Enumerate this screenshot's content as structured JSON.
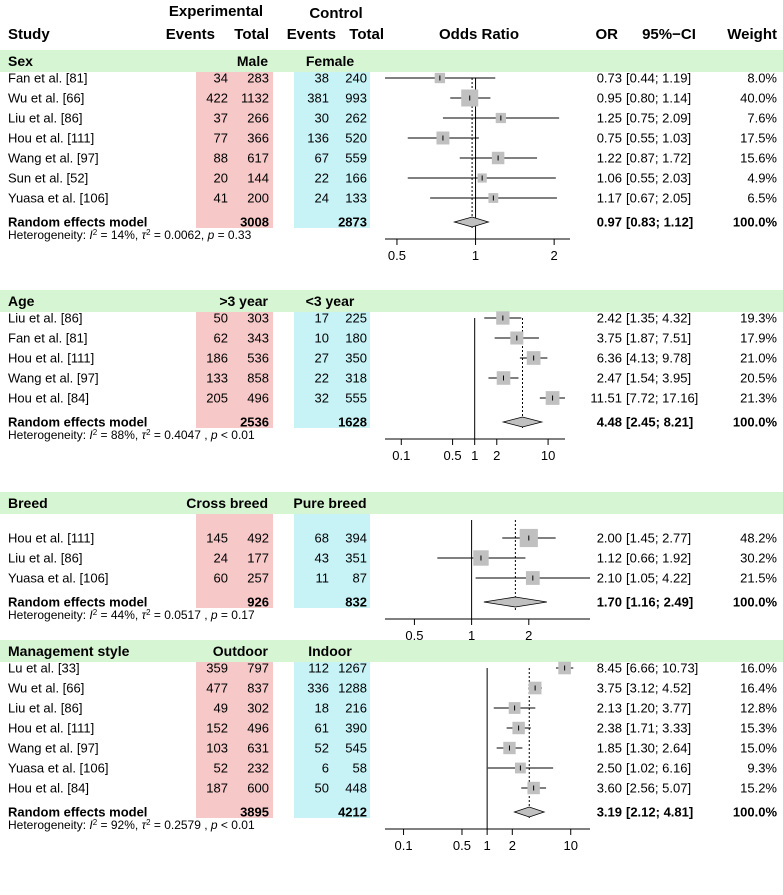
{
  "chart_data": {
    "type": "forest",
    "columns": {
      "study": "Study",
      "experimental": "Experimental",
      "control": "Control",
      "events": "Events",
      "total": "Total",
      "odds_ratio": "Odds Ratio",
      "or": "OR",
      "ci": "95%−CI",
      "weight": "Weight"
    },
    "random_label": "Random effects model",
    "reference_line_or": 1,
    "colors": {
      "group_band": "#d6f5d2",
      "experimental_band": "#f6c8c8",
      "control_band": "#c7f3f7",
      "box": "#c0c0c0",
      "diamond": "#c0c0c0",
      "lines": "#000000",
      "dotted": "#000000"
    },
    "subgroups": [
      {
        "name": "Sex",
        "exp_label": "Male",
        "ctrl_label": "Female",
        "scale": "log",
        "xlim": [
          0.45,
          2.3
        ],
        "ticks": [
          0.5,
          1,
          2
        ],
        "tick_labels": [
          "0.5",
          "1",
          "2"
        ],
        "studies": [
          {
            "study": "Fan et al. [81]",
            "exp_events": 34,
            "exp_total": 283,
            "ctrl_events": 38,
            "ctrl_total": 240,
            "or": 0.73,
            "lo": 0.44,
            "hi": 1.19,
            "or_text": "0.73",
            "ci_text": "[0.44; 1.19]",
            "weight": "8.0%",
            "w": 8.0
          },
          {
            "study": "Wu et al. [66]",
            "exp_events": 422,
            "exp_total": 1132,
            "ctrl_events": 381,
            "ctrl_total": 993,
            "or": 0.95,
            "lo": 0.8,
            "hi": 1.14,
            "or_text": "0.95",
            "ci_text": "[0.80; 1.14]",
            "weight": "40.0%",
            "w": 40.0
          },
          {
            "study": "Liu et al. [86]",
            "exp_events": 37,
            "exp_total": 266,
            "ctrl_events": 30,
            "ctrl_total": 262,
            "or": 1.25,
            "lo": 0.75,
            "hi": 2.09,
            "or_text": "1.25",
            "ci_text": "[0.75; 2.09]",
            "weight": "7.6%",
            "w": 7.6
          },
          {
            "study": "Hou et al. [111]",
            "exp_events": 77,
            "exp_total": 366,
            "ctrl_events": 136,
            "ctrl_total": 520,
            "or": 0.75,
            "lo": 0.55,
            "hi": 1.03,
            "or_text": "0.75",
            "ci_text": "[0.55; 1.03]",
            "weight": "17.5%",
            "w": 17.5
          },
          {
            "study": "Wang et al. [97]",
            "exp_events": 88,
            "exp_total": 617,
            "ctrl_events": 67,
            "ctrl_total": 559,
            "or": 1.22,
            "lo": 0.87,
            "hi": 1.72,
            "or_text": "1.22",
            "ci_text": "[0.87; 1.72]",
            "weight": "15.6%",
            "w": 15.6
          },
          {
            "study": "Sun et al. [52]",
            "exp_events": 20,
            "exp_total": 144,
            "ctrl_events": 22,
            "ctrl_total": 166,
            "or": 1.06,
            "lo": 0.55,
            "hi": 2.03,
            "or_text": "1.06",
            "ci_text": "[0.55; 2.03]",
            "weight": "4.9%",
            "w": 4.9
          },
          {
            "study": "Yuasa et al. [106]",
            "exp_events": 41,
            "exp_total": 200,
            "ctrl_events": 24,
            "ctrl_total": 133,
            "or": 1.17,
            "lo": 0.67,
            "hi": 2.05,
            "or_text": "1.17",
            "ci_text": "[0.67; 2.05]",
            "weight": "6.5%",
            "w": 6.5
          }
        ],
        "pooled": {
          "exp_total": 3008,
          "ctrl_total": 2873,
          "or": 0.97,
          "lo": 0.83,
          "hi": 1.12,
          "or_text": "0.97",
          "ci_text": "[0.83; 1.12]",
          "weight": "100.0%"
        },
        "heterogeneity": {
          "prefix": "Heterogeneity: ",
          "i2": "I",
          "i2_sup": "2",
          "i2_val": " = 14%, ",
          "tau": "τ",
          "tau_sup": "2",
          "tau_val": " = 0.0062, ",
          "p": "p",
          "p_val": " = 0.33"
        }
      },
      {
        "name": "Age",
        "exp_label": ">3 year",
        "ctrl_label": "<3 year",
        "scale": "log",
        "xlim": [
          0.06,
          17
        ],
        "ticks": [
          0.1,
          0.5,
          1,
          2,
          10
        ],
        "tick_labels": [
          "0.1",
          "0.5",
          "1",
          "2",
          "10"
        ],
        "studies": [
          {
            "study": "Liu et al. [86]",
            "exp_events": 50,
            "exp_total": 303,
            "ctrl_events": 17,
            "ctrl_total": 225,
            "or": 2.42,
            "lo": 1.35,
            "hi": 4.32,
            "or_text": "2.42",
            "ci_text": "[1.35; 4.32]",
            "weight": "19.3%",
            "w": 19.3
          },
          {
            "study": "Fan et al. [81]",
            "exp_events": 62,
            "exp_total": 343,
            "ctrl_events": 10,
            "ctrl_total": 180,
            "or": 3.75,
            "lo": 1.87,
            "hi": 7.51,
            "or_text": "3.75",
            "ci_text": "[1.87; 7.51]",
            "weight": "17.9%",
            "w": 17.9
          },
          {
            "study": "Hou et al. [111]",
            "exp_events": 186,
            "exp_total": 536,
            "ctrl_events": 27,
            "ctrl_total": 350,
            "or": 6.36,
            "lo": 4.13,
            "hi": 9.78,
            "or_text": "6.36",
            "ci_text": "[4.13; 9.78]",
            "weight": "21.0%",
            "w": 21.0
          },
          {
            "study": "Wang et al. [97]",
            "exp_events": 133,
            "exp_total": 858,
            "ctrl_events": 22,
            "ctrl_total": 318,
            "or": 2.47,
            "lo": 1.54,
            "hi": 3.95,
            "or_text": "2.47",
            "ci_text": "[1.54; 3.95]",
            "weight": "20.5%",
            "w": 20.5
          },
          {
            "study": "Hou et al. [84]",
            "exp_events": 205,
            "exp_total": 496,
            "ctrl_events": 32,
            "ctrl_total": 555,
            "or": 11.51,
            "lo": 7.72,
            "hi": 17.16,
            "or_text": "11.51",
            "ci_text": "[7.72; 17.16]",
            "weight": "21.3%",
            "w": 21.3
          }
        ],
        "pooled": {
          "exp_total": 2536,
          "ctrl_total": 1628,
          "or": 4.48,
          "lo": 2.45,
          "hi": 8.21,
          "or_text": "4.48",
          "ci_text": "[2.45; 8.21]",
          "weight": "100.0%"
        },
        "heterogeneity": {
          "prefix": "Heterogeneity: ",
          "i2": "I",
          "i2_sup": "2",
          "i2_val": " = 88%, ",
          "tau": "τ",
          "tau_sup": "2",
          "tau_val": " = 0.4047 , ",
          "p": "p",
          "p_val": " < 0.01"
        }
      },
      {
        "name": "Breed",
        "exp_label": "Cross breed",
        "ctrl_label": "Pure breed",
        "scale": "log",
        "xlim": [
          0.35,
          4.2
        ],
        "ticks": [
          0.5,
          1,
          2
        ],
        "tick_labels": [
          "0.5",
          "1",
          "2"
        ],
        "studies": [
          {
            "study": "Hou et al. [111]",
            "exp_events": 145,
            "exp_total": 492,
            "ctrl_events": 68,
            "ctrl_total": 394,
            "or": 2.0,
            "lo": 1.45,
            "hi": 2.77,
            "or_text": "2.00",
            "ci_text": "[1.45; 2.77]",
            "weight": "48.2%",
            "w": 48.2
          },
          {
            "study": "Liu et al. [86]",
            "exp_events": 24,
            "exp_total": 177,
            "ctrl_events": 43,
            "ctrl_total": 351,
            "or": 1.12,
            "lo": 0.66,
            "hi": 1.92,
            "or_text": "1.12",
            "ci_text": "[0.66; 1.92]",
            "weight": "30.2%",
            "w": 30.2
          },
          {
            "study": "Yuasa et al. [106]",
            "exp_events": 60,
            "exp_total": 257,
            "ctrl_events": 11,
            "ctrl_total": 87,
            "or": 2.1,
            "lo": 1.05,
            "hi": 4.22,
            "or_text": "2.10",
            "ci_text": "[1.05; 4.22]",
            "weight": "21.5%",
            "w": 21.5
          }
        ],
        "pooled": {
          "exp_total": 926,
          "ctrl_total": 832,
          "or": 1.7,
          "lo": 1.16,
          "hi": 2.49,
          "or_text": "1.70",
          "ci_text": "[1.16; 2.49]",
          "weight": "100.0%"
        },
        "heterogeneity": {
          "prefix": "Heterogeneity: ",
          "i2": "I",
          "i2_sup": "2",
          "i2_val": " = 44%, ",
          "tau": "τ",
          "tau_sup": "2",
          "tau_val": " = 0.0517 , ",
          "p": "p",
          "p_val": " = 0.17"
        }
      },
      {
        "name": "Management style",
        "exp_label": "Outdoor",
        "ctrl_label": "Indoor",
        "scale": "log",
        "xlim": [
          0.06,
          17
        ],
        "ticks": [
          0.1,
          0.5,
          1,
          2,
          10
        ],
        "tick_labels": [
          "0.1",
          "0.5",
          "1",
          "2",
          "10"
        ],
        "studies": [
          {
            "study": "Lu et al. [33]",
            "exp_events": 359,
            "exp_total": 797,
            "ctrl_events": 112,
            "ctrl_total": 1267,
            "or": 8.45,
            "lo": 6.66,
            "hi": 10.73,
            "or_text": "8.45",
            "ci_text": "[6.66; 10.73]",
            "weight": "16.0%",
            "w": 16.0
          },
          {
            "study": "Wu et al. [66]",
            "exp_events": 477,
            "exp_total": 837,
            "ctrl_events": 336,
            "ctrl_total": 1288,
            "or": 3.75,
            "lo": 3.12,
            "hi": 4.52,
            "or_text": "3.75",
            "ci_text": "[3.12; 4.52]",
            "weight": "16.4%",
            "w": 16.4
          },
          {
            "study": "Liu et al. [86]",
            "exp_events": 49,
            "exp_total": 302,
            "ctrl_events": 18,
            "ctrl_total": 216,
            "or": 2.13,
            "lo": 1.2,
            "hi": 3.77,
            "or_text": "2.13",
            "ci_text": "[1.20; 3.77]",
            "weight": "12.8%",
            "w": 12.8
          },
          {
            "study": "Hou et al. [111]",
            "exp_events": 152,
            "exp_total": 496,
            "ctrl_events": 61,
            "ctrl_total": 390,
            "or": 2.38,
            "lo": 1.71,
            "hi": 3.33,
            "or_text": "2.38",
            "ci_text": "[1.71; 3.33]",
            "weight": "15.3%",
            "w": 15.3
          },
          {
            "study": "Wang et al. [97]",
            "exp_events": 103,
            "exp_total": 631,
            "ctrl_events": 52,
            "ctrl_total": 545,
            "or": 1.85,
            "lo": 1.3,
            "hi": 2.64,
            "or_text": "1.85",
            "ci_text": "[1.30; 2.64]",
            "weight": "15.0%",
            "w": 15.0
          },
          {
            "study": "Yuasa et al. [106]",
            "exp_events": 52,
            "exp_total": 232,
            "ctrl_events": 6,
            "ctrl_total": 58,
            "or": 2.5,
            "lo": 1.02,
            "hi": 6.16,
            "or_text": "2.50",
            "ci_text": "[1.02; 6.16]",
            "weight": "9.3%",
            "w": 9.3
          },
          {
            "study": "Hou et al. [84]",
            "exp_events": 187,
            "exp_total": 600,
            "ctrl_events": 50,
            "ctrl_total": 448,
            "or": 3.6,
            "lo": 2.56,
            "hi": 5.07,
            "or_text": "3.60",
            "ci_text": "[2.56; 5.07]",
            "weight": "15.2%",
            "w": 15.2
          }
        ],
        "pooled": {
          "exp_total": 3895,
          "ctrl_total": 4212,
          "or": 3.19,
          "lo": 2.12,
          "hi": 4.81,
          "or_text": "3.19",
          "ci_text": "[2.12; 4.81]",
          "weight": "100.0%"
        },
        "heterogeneity": {
          "prefix": "Heterogeneity: ",
          "i2": "I",
          "i2_sup": "2",
          "i2_val": " = 92%, ",
          "tau": "τ",
          "tau_sup": "2",
          "tau_val": " = 0.2579 , ",
          "p": "p",
          "p_val": " < 0.01"
        }
      }
    ]
  }
}
